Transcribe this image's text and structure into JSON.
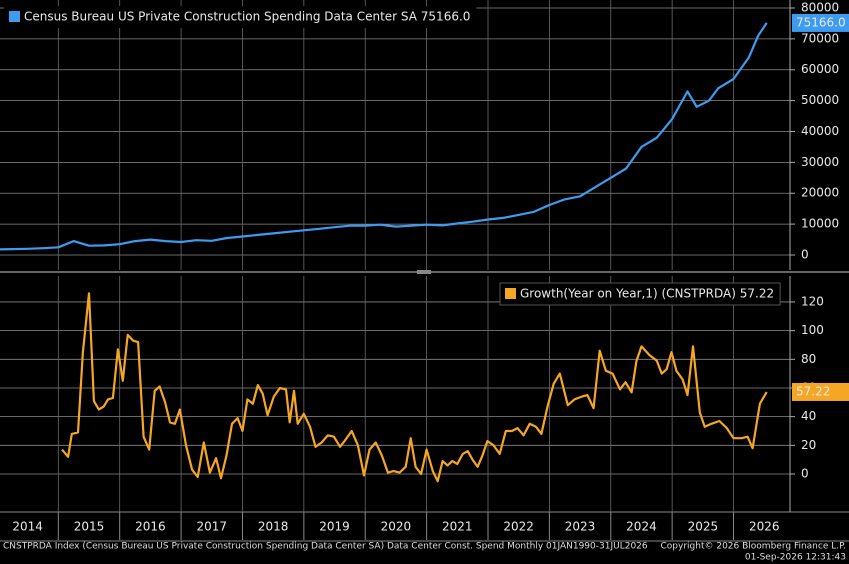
{
  "chart_data": [
    {
      "type": "line",
      "xlim": [
        2014.05,
        2026.92
      ],
      "xticks": [
        2014,
        2015,
        2016,
        2017,
        2018,
        2019,
        2020,
        2021,
        2022,
        2023,
        2024,
        2025,
        2026
      ],
      "ylim": [
        -4860,
        82590
      ],
      "yticks": [
        0,
        10000,
        20000,
        30000,
        40000,
        50000,
        60000,
        70000,
        80000
      ],
      "grid": true,
      "series": [
        {
          "name": "Census Bureau US Private Construction Spending Data Center SA 75166.0",
          "color": "#3d9bf0",
          "last_value_label": "75166.0",
          "x": [
            2014.0,
            2014.25,
            2014.5,
            2014.75,
            2015.0,
            2015.25,
            2015.5,
            2015.75,
            2016.0,
            2016.25,
            2016.5,
            2016.75,
            2017.0,
            2017.25,
            2017.5,
            2017.75,
            2018.0,
            2018.25,
            2018.5,
            2018.75,
            2019.0,
            2019.25,
            2019.5,
            2019.75,
            2020.0,
            2020.25,
            2020.5,
            2020.75,
            2021.0,
            2021.25,
            2021.5,
            2021.75,
            2022.0,
            2022.25,
            2022.5,
            2022.75,
            2023.0,
            2023.25,
            2023.5,
            2023.75,
            2024.0,
            2024.25,
            2024.5,
            2024.75,
            2025.0,
            2025.25,
            2025.4,
            2025.6,
            2025.75,
            2026.0,
            2026.25,
            2026.4,
            2026.54
          ],
          "values": [
            1800,
            1900,
            2000,
            2200,
            2500,
            4500,
            3000,
            3100,
            3500,
            4500,
            5000,
            4500,
            4200,
            4800,
            4600,
            5500,
            6000,
            6500,
            7000,
            7500,
            8000,
            8500,
            9000,
            9500,
            9500,
            9800,
            9200,
            9500,
            9800,
            9600,
            10200,
            10800,
            11500,
            12000,
            13000,
            14000,
            16200,
            18000,
            19000,
            22000,
            25000,
            28000,
            35000,
            38000,
            44000,
            53000,
            48000,
            50000,
            54000,
            57000,
            64000,
            71000,
            75166
          ]
        }
      ]
    },
    {
      "type": "line",
      "xlim": [
        2014.05,
        2026.92
      ],
      "xticks": [
        2014,
        2015,
        2016,
        2017,
        2018,
        2019,
        2020,
        2021,
        2022,
        2023,
        2024,
        2025,
        2026
      ],
      "ylim": [
        -26.5,
        138.1
      ],
      "yticks": [
        0,
        20,
        40,
        60,
        80,
        100,
        120
      ],
      "grid": true,
      "series": [
        {
          "name": "Growth(Year on Year,1) (CNSTPRDA) 57.22",
          "color": "#f5a623",
          "last_value_label": "57.22",
          "x": [
            2015.06,
            2015.16,
            2015.22,
            2015.32,
            2015.4,
            2015.5,
            2015.58,
            2015.66,
            2015.74,
            2015.81,
            2015.89,
            2015.97,
            2016.05,
            2016.13,
            2016.22,
            2016.3,
            2016.39,
            2016.48,
            2016.57,
            2016.65,
            2016.74,
            2016.82,
            2016.9,
            2016.98,
            2017.08,
            2017.18,
            2017.27,
            2017.37,
            2017.47,
            2017.57,
            2017.65,
            2017.74,
            2017.83,
            2017.92,
            2018.0,
            2018.08,
            2018.17,
            2018.25,
            2018.33,
            2018.41,
            2018.51,
            2018.61,
            2018.71,
            2018.77,
            2018.84,
            2018.9,
            2019.0,
            2019.1,
            2019.19,
            2019.29,
            2019.39,
            2019.49,
            2019.59,
            2019.68,
            2019.78,
            2019.88,
            2019.98,
            2020.07,
            2020.17,
            2020.27,
            2020.37,
            2020.46,
            2020.56,
            2020.66,
            2020.74,
            2020.82,
            2020.91,
            2021.0,
            2021.1,
            2021.18,
            2021.26,
            2021.34,
            2021.42,
            2021.5,
            2021.59,
            2021.67,
            2021.75,
            2021.83,
            2021.91,
            2021.99,
            2022.09,
            2022.19,
            2022.29,
            2022.39,
            2022.48,
            2022.58,
            2022.68,
            2022.78,
            2022.87,
            2022.97,
            2023.07,
            2023.17,
            2023.3,
            2023.41,
            2023.53,
            2023.62,
            2023.72,
            2023.82,
            2023.92,
            2024.03,
            2024.15,
            2024.24,
            2024.34,
            2024.42,
            2024.5,
            2024.63,
            2024.75,
            2024.83,
            2024.91,
            2024.99,
            2025.07,
            2025.17,
            2025.25,
            2025.34,
            2025.45,
            2025.53,
            2025.64,
            2025.77,
            2025.89,
            2026.0,
            2026.13,
            2026.23,
            2026.31,
            2026.43,
            2026.54
          ],
          "values": [
            17,
            12,
            28,
            29,
            85,
            126,
            51,
            45,
            47,
            52,
            53,
            87,
            65,
            97,
            93,
            92,
            26,
            17,
            58,
            61,
            50,
            36,
            35,
            45,
            20,
            3,
            -2,
            22,
            1,
            11,
            -3,
            13,
            35,
            39,
            30,
            52,
            49,
            62,
            56,
            41,
            54,
            60,
            59,
            36,
            58,
            35,
            42,
            33,
            19,
            22,
            27,
            26,
            19,
            24,
            30,
            20,
            -1,
            17,
            22,
            13,
            1,
            2,
            1,
            5,
            25,
            5,
            0,
            17,
            2,
            -5,
            9,
            6,
            9,
            7,
            14,
            16,
            10,
            5,
            13,
            23,
            20,
            14,
            30,
            30,
            32,
            27,
            35,
            33,
            28,
            47,
            63,
            70,
            48,
            52,
            54,
            55,
            46,
            86,
            72,
            70,
            59,
            64,
            57,
            79,
            89,
            83,
            79,
            70,
            73,
            85,
            72,
            66,
            55,
            89,
            43,
            33,
            35,
            37,
            32,
            25,
            25,
            26,
            18,
            49,
            57.22
          ]
        }
      ]
    }
  ],
  "footer": {
    "source": "CNSTPRDA Index (Census Bureau US Private Construction Spending Data Center SA) Data Center Const. Spend Monthly 01JAN1990-31JUL2026",
    "copyright": "Copyright© 2026 Bloomberg Finance L.P.",
    "timestamp": "01-Sep-2026 12:31:43"
  }
}
